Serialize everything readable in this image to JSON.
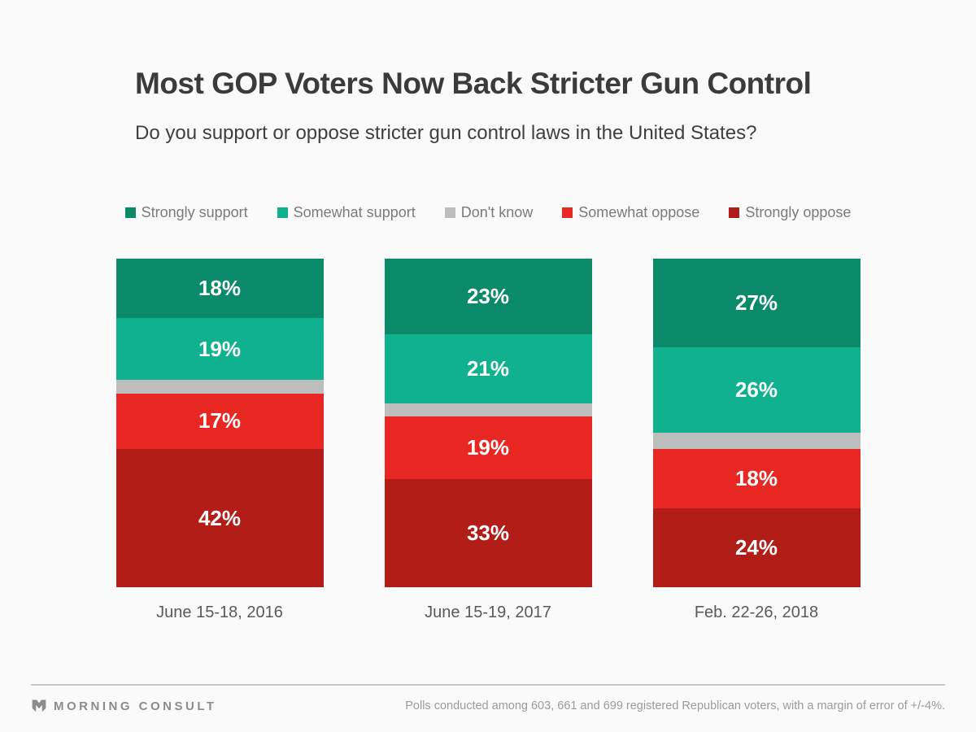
{
  "header": {
    "title": "Most GOP Voters Now Back Stricter Gun Control",
    "subtitle": "Do you support or oppose stricter gun control laws in the United States?"
  },
  "chart_data": {
    "type": "bar",
    "stacked": true,
    "orientation": "vertical",
    "title": "Most GOP Voters Now Back Stricter Gun Control",
    "question": "Do you support or oppose stricter gun control laws in the United States?",
    "categories": [
      "June 15-18, 2016",
      "June 15-19, 2017",
      "Feb. 22-26, 2018"
    ],
    "series": [
      {
        "name": "Strongly support",
        "color": "#0B8A6A",
        "values": [
          18,
          23,
          27
        ],
        "labels_shown": true
      },
      {
        "name": "Somewhat support",
        "color": "#10B18E",
        "values": [
          19,
          21,
          26
        ],
        "labels_shown": true
      },
      {
        "name": "Don't know",
        "color": "#BDBDBD",
        "values": [
          4,
          4,
          5
        ],
        "labels_shown": false
      },
      {
        "name": "Somewhat oppose",
        "color": "#E82622",
        "values": [
          17,
          19,
          18
        ],
        "labels_shown": true
      },
      {
        "name": "Strongly oppose",
        "color": "#B21D17",
        "values": [
          42,
          33,
          24
        ],
        "labels_shown": true
      }
    ],
    "value_suffix": "%",
    "ylim": [
      0,
      100
    ],
    "grid": false,
    "legend_position": "top",
    "value_label_color": "#FFFFFF"
  },
  "footer": {
    "brand": "MORNING CONSULT",
    "note": "Polls conducted among 603, 661 and 699 registered Republican voters, with a margin of error of +/-4%."
  },
  "colors": {
    "background": "#FAFAFA",
    "title_text": "#3B3B3B",
    "legend_text": "#7B7B7B",
    "axis_text": "#58595B",
    "footer_text": "#9B9B9B",
    "divider": "#C9C9C9"
  }
}
